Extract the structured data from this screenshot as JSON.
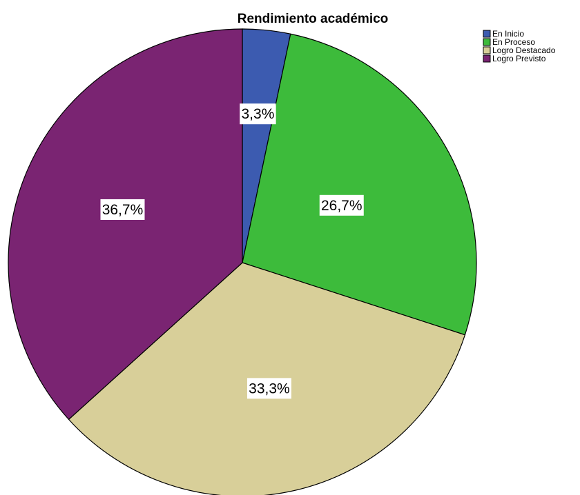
{
  "chart_data": {
    "type": "pie",
    "title": "Rendimiento académico",
    "categories": [
      "En Inicio",
      "En Proceso",
      "Logro Destacado",
      "Logro Previsto"
    ],
    "values": [
      3.3,
      26.7,
      33.3,
      36.7
    ],
    "labels": [
      "3,3%",
      "26,7%",
      "33,3%",
      "36,7%"
    ],
    "colors": [
      "#3c5bb0",
      "#3dbb3b",
      "#d8cf99",
      "#7a2472"
    ],
    "legend_position": "top-right",
    "start_angle": "12 o'clock",
    "direction": "clockwise"
  }
}
